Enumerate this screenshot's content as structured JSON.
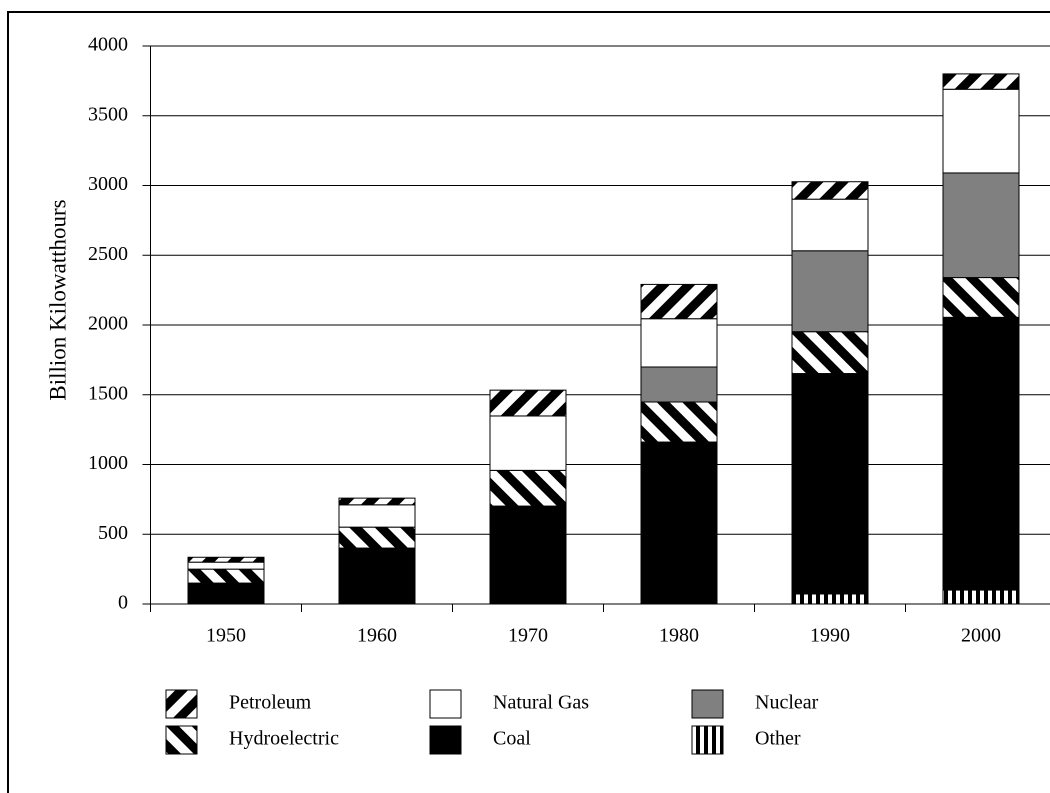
{
  "chart_data": {
    "type": "stacked-bar",
    "y_label": "Billion Kilowatthours",
    "categories": [
      "1950",
      "1960",
      "1970",
      "1980",
      "1990",
      "2000"
    ],
    "series": [
      {
        "name": "Petroleum",
        "pattern": "hatch-down",
        "values": [
          35,
          48,
          185,
          246,
          125,
          110
        ]
      },
      {
        "name": "Natural Gas",
        "color": "#ffffff",
        "values": [
          50,
          160,
          390,
          346,
          370,
          600
        ]
      },
      {
        "name": "Nuclear",
        "color": "#808080",
        "values": [
          0,
          0,
          0,
          251,
          580,
          750
        ]
      },
      {
        "name": "Hydroelectric",
        "pattern": "hatch-up",
        "values": [
          100,
          150,
          256,
          287,
          300,
          285
        ]
      },
      {
        "name": "Coal",
        "color": "#000000",
        "values": [
          150,
          401,
          702,
          1161,
          1580,
          1955
        ]
      },
      {
        "name": "Other",
        "pattern": "vertical",
        "values": [
          0,
          0,
          0,
          0,
          72,
          100
        ]
      }
    ],
    "ylim": [
      0,
      4000
    ],
    "yticks": [
      0,
      500,
      1000,
      1500,
      2000,
      2500,
      3000,
      3500,
      4000
    ],
    "grid": true
  }
}
